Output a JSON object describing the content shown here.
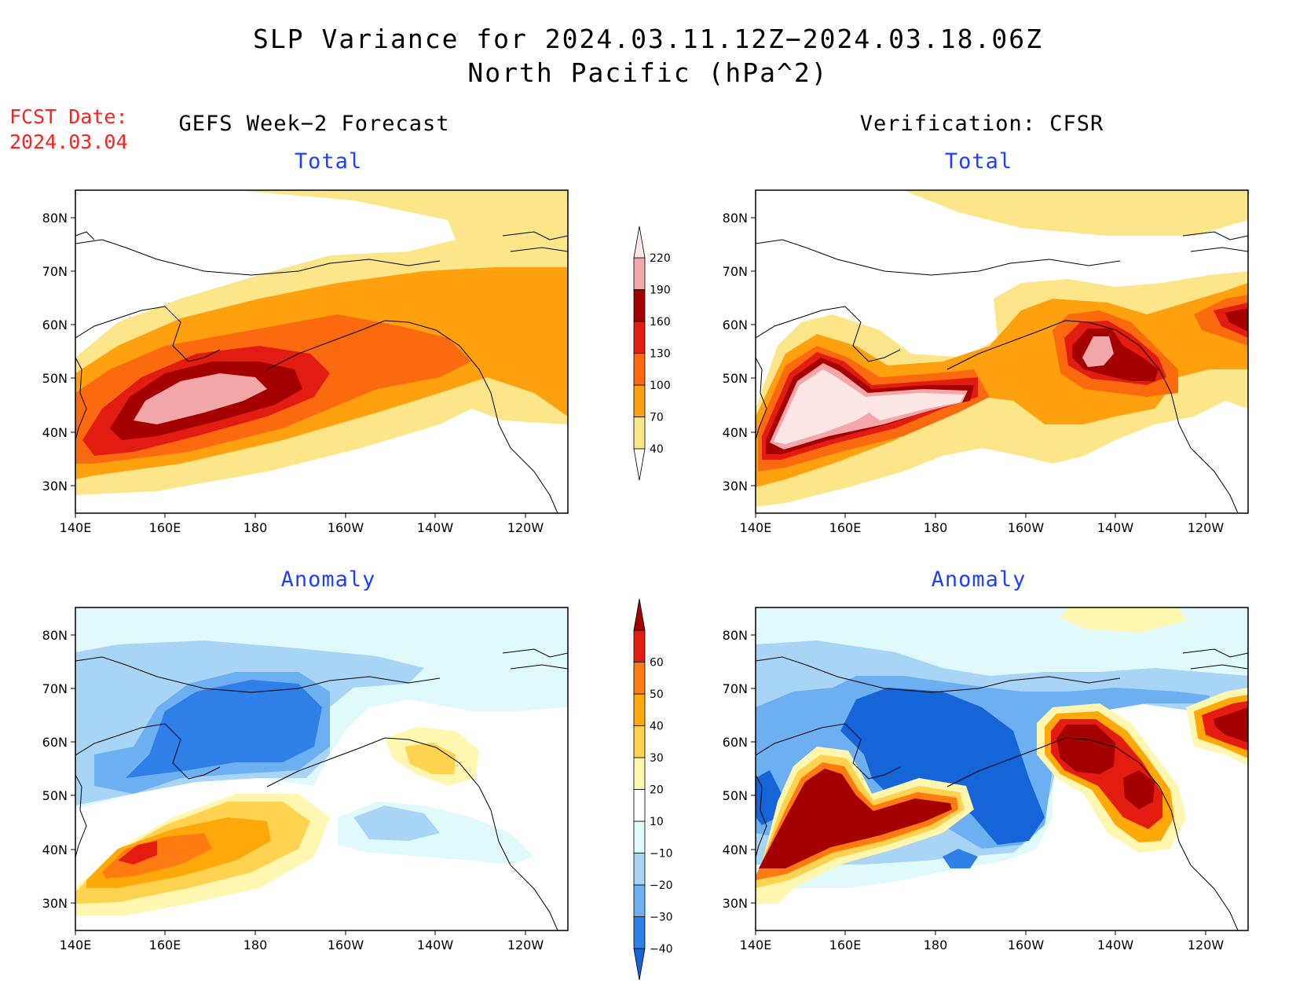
{
  "title": {
    "line1": "SLP Variance for 2024.03.11.12Z−2024.03.18.06Z",
    "line2": "North Pacific (hPa^2)"
  },
  "forecast_date": {
    "label": "FCST Date:",
    "value": "2024.03.04"
  },
  "columns": {
    "left": "GEFS Week−2 Forecast",
    "right": "Verification: CFSR"
  },
  "panel_titles": {
    "total": "Total",
    "anomaly": "Anomaly"
  },
  "axes": {
    "lat_labels": [
      "80N",
      "70N",
      "60N",
      "50N",
      "40N",
      "30N"
    ],
    "lon_labels": [
      "140E",
      "160E",
      "180",
      "160W",
      "140W",
      "120W"
    ]
  },
  "colorbars": {
    "total": {
      "levels": [
        "40",
        "70",
        "100",
        "130",
        "160",
        "190",
        "220"
      ],
      "colors": [
        "#ffffff",
        "#fde68a",
        "#ffa00f",
        "#fb6a0e",
        "#e21c10",
        "#a50000",
        "#f4a7a8",
        "#fde6e6"
      ]
    },
    "anomaly": {
      "levels": [
        "−40",
        "−30",
        "−20",
        "−10",
        "10",
        "20",
        "30",
        "40",
        "50",
        "60"
      ],
      "colors": [
        "#1565d8",
        "#2e7fe8",
        "#6cb0f2",
        "#a8d4f6",
        "#e0fafc",
        "#ffffff",
        "#fff6b0",
        "#ffd34f",
        "#ffa80a",
        "#ff7a10",
        "#e31c0f",
        "#a50000"
      ]
    }
  },
  "colors": {
    "title_text": "#000000",
    "forecast_date": "#ff2020",
    "panel_title": "#1f3fff"
  }
}
